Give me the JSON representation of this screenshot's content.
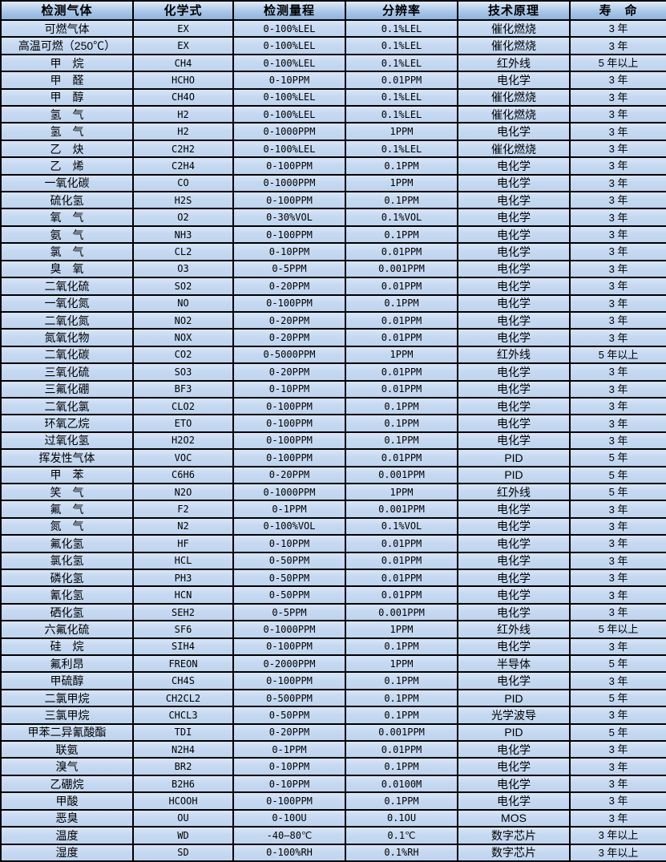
{
  "table": {
    "columns": [
      "检测气体",
      "化学式",
      "检测量程",
      "分辨率",
      "技术原理",
      "寿　命"
    ],
    "column_keys": [
      "gas-name",
      "chemical-formula",
      "detection-range",
      "resolution",
      "technology",
      "lifespan"
    ],
    "rows": [
      [
        "可燃气体",
        "EX",
        "0-100%LEL",
        "0.1%LEL",
        "催化燃烧",
        "3 年"
      ],
      [
        "高温可燃（250℃）",
        "EX",
        "0-100%LEL",
        "0.1%LEL",
        "催化燃烧",
        "3 年"
      ],
      [
        "甲　烷",
        "CH4",
        "0-100%LEL",
        "0.1%LEL",
        "红外线",
        "5 年以上"
      ],
      [
        "甲　醛",
        "HCHO",
        "0-10PPM",
        "0.01PPM",
        "电化学",
        "3 年"
      ],
      [
        "甲　醇",
        "CH4O",
        "0-100%LEL",
        "0.1%LEL",
        "催化燃烧",
        "3 年"
      ],
      [
        "氢　气",
        "H2",
        "0-100%LEL",
        "0.1%LEL",
        "催化燃烧",
        "3 年"
      ],
      [
        "氢　气",
        "H2",
        "0-1000PPM",
        "1PPM",
        "电化学",
        "3 年"
      ],
      [
        "乙　炔",
        "C2H2",
        "0-100%LEL",
        "0.1%LEL",
        "催化燃烧",
        "3 年"
      ],
      [
        "乙　烯",
        "C2H4",
        "0-100PPM",
        "0.1PPM",
        "电化学",
        "3 年"
      ],
      [
        "一氧化碳",
        "CO",
        "0-1000PPM",
        "1PPM",
        "电化学",
        "3 年"
      ],
      [
        "硫化氢",
        "H2S",
        "0-100PPM",
        "0.1PPM",
        "电化学",
        "3 年"
      ],
      [
        "氧　气",
        "O2",
        "0-30%VOL",
        "0.1%VOL",
        "电化学",
        "3 年"
      ],
      [
        "氨　气",
        "NH3",
        "0-100PPM",
        "0.1PPM",
        "电化学",
        "3 年"
      ],
      [
        "氯　气",
        "CL2",
        "0-10PPM",
        "0.01PPM",
        "电化学",
        "3 年"
      ],
      [
        "臭　氧",
        "O3",
        "0-5PPM",
        "0.001PPM",
        "电化学",
        "3 年"
      ],
      [
        "二氧化硫",
        "SO2",
        "0-20PPM",
        "0.01PPM",
        "电化学",
        "3 年"
      ],
      [
        "一氧化氮",
        "NO",
        "0-100PPM",
        "0.1PPM",
        "电化学",
        "3 年"
      ],
      [
        "二氧化氮",
        "NO2",
        "0-20PPM",
        "0.01PPM",
        "电化学",
        "3 年"
      ],
      [
        "氮氧化物",
        "NOX",
        "0-20PPM",
        "0.01PPM",
        "电化学",
        "3 年"
      ],
      [
        "二氧化碳",
        "CO2",
        "0-5000PPM",
        "1PPM",
        "红外线",
        "5 年以上"
      ],
      [
        "三氧化硫",
        "SO3",
        "0-20PPM",
        "0.01PPM",
        "电化学",
        "3 年"
      ],
      [
        "三氟化硼",
        "BF3",
        "0-10PPM",
        "0.01PPM",
        "电化学",
        "3 年"
      ],
      [
        "二氧化氯",
        "CLO2",
        "0-100PPM",
        "0.1PPM",
        "电化学",
        "3 年"
      ],
      [
        "环氧乙烷",
        "ETO",
        "0-100PPM",
        "0.1PPM",
        "电化学",
        "3 年"
      ],
      [
        "过氧化氢",
        "H2O2",
        "0-100PPM",
        "0.1PPM",
        "电化学",
        "3 年"
      ],
      [
        "挥发性气体",
        "VOC",
        "0-100PPM",
        "0.01PPM",
        "PID",
        "5 年"
      ],
      [
        "甲　苯",
        "C6H6",
        "0-20PPM",
        "0.001PPM",
        "PID",
        "5 年"
      ],
      [
        "笑　气",
        "N2O",
        "0-1000PPM",
        "1PPM",
        "红外线",
        "5 年"
      ],
      [
        "氟　气",
        "F2",
        "0-1PPM",
        "0.001PPM",
        "电化学",
        "3 年"
      ],
      [
        "氮　气",
        "N2",
        "0-100%VOL",
        "0.1%VOL",
        "电化学",
        "3 年"
      ],
      [
        "氟化氢",
        "HF",
        "0-10PPM",
        "0.01PPM",
        "电化学",
        "3 年"
      ],
      [
        "氯化氢",
        "HCL",
        "0-50PPM",
        "0.01PPM",
        "电化学",
        "3 年"
      ],
      [
        "磷化氢",
        "PH3",
        "0-50PPM",
        "0.01PPM",
        "电化学",
        "3 年"
      ],
      [
        "氰化氢",
        "HCN",
        "0-50PPM",
        "0.01PPM",
        "电化学",
        "3 年"
      ],
      [
        "硒化氢",
        "SEH2",
        "0-5PPM",
        "0.001PPM",
        "电化学",
        "3 年"
      ],
      [
        "六氟化硫",
        "SF6",
        "0-1000PPM",
        "1PPM",
        "红外线",
        "5 年以上"
      ],
      [
        "硅　烷",
        "SIH4",
        "0-100PPM",
        "0.1PPM",
        "电化学",
        "3 年"
      ],
      [
        "氟利昂",
        "FREON",
        "0-2000PPM",
        "1PPM",
        "半导体",
        "5 年"
      ],
      [
        "甲硫醇",
        "CH4S",
        "0-100PPM",
        "0.1PPM",
        "电化学",
        "3 年"
      ],
      [
        "二氯甲烷",
        "CH2CL2",
        "0-500PPM",
        "0.1PPM",
        "PID",
        "5 年"
      ],
      [
        "三氯甲烷",
        "CHCL3",
        "0-50PPM",
        "0.1PPM",
        "光学波导",
        "3 年"
      ],
      [
        "甲苯二异氰酸酯",
        "TDI",
        "0-20PPM",
        "0.001PPM",
        "PID",
        "5 年"
      ],
      [
        "联氨",
        "N2H4",
        "0-1PPM",
        "0.01PPM",
        "电化学",
        "3 年"
      ],
      [
        "溴气",
        "BR2",
        "0-10PPM",
        "0.1PPM",
        "电化学",
        "3 年"
      ],
      [
        "乙硼烷",
        "B2H6",
        "0-10PPM",
        "0.0100M",
        "电化学",
        "3 年"
      ],
      [
        "甲酸",
        "HCOOH",
        "0-100PPM",
        "0.1PPM",
        "电化学",
        "3 年"
      ],
      [
        "恶臭",
        "OU",
        "0-10OU",
        "0.1OU",
        "MOS",
        "3 年"
      ],
      [
        "温度",
        "WD",
        "-40—80℃",
        "0.1℃",
        "数字芯片",
        "3 年以上"
      ],
      [
        "湿度",
        "SD",
        "0-100%RH",
        "0.1%RH",
        "数字芯片",
        "3 年以上"
      ]
    ],
    "colors": {
      "cell_bg": "#c6d9f2",
      "cell_bg_top": "#d8e5f6",
      "header_top": "#dfeaf8",
      "header_bottom": "#8fb3dd",
      "border": "#000000",
      "text": "#000000"
    }
  }
}
